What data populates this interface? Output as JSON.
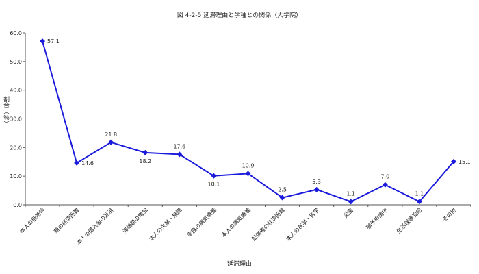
{
  "chart_data": {
    "type": "line",
    "title": "図 4-2-5 延滞理由と学種との関係（大学院）",
    "xlabel": "延滞理由",
    "ylabel": "割合（％）",
    "categories": [
      "本人の低所得",
      "親の経済困難",
      "本人の借入金の返済",
      "滞納額の増加",
      "本人の失業・無職",
      "家族の病気療養",
      "本人の病気療養",
      "配偶者の経済困難",
      "本人の在学・留学",
      "災害",
      "猶予申請中",
      "生活保護受給",
      "その他"
    ],
    "values": [
      57.1,
      14.6,
      21.8,
      18.2,
      17.6,
      10.1,
      10.9,
      2.5,
      5.3,
      1.1,
      7.0,
      1.1,
      15.1
    ],
    "data_labels": [
      "57.1",
      "14.6",
      "21.8",
      "18.2",
      "17.6",
      "10.1",
      "10.9",
      "2.5",
      "5.3",
      "1.1",
      "7.0",
      "1.1",
      "15.1"
    ],
    "ylim": [
      0,
      60
    ],
    "yticks": [
      0,
      10,
      20,
      30,
      40,
      50,
      60
    ],
    "ytick_labels": [
      "0.0",
      "10.0",
      "20.0",
      "30.0",
      "40.0",
      "50.0",
      "60.0"
    ],
    "grid": false,
    "legend": "none",
    "line_color": "#1a1adc",
    "marker": "diamond"
  }
}
